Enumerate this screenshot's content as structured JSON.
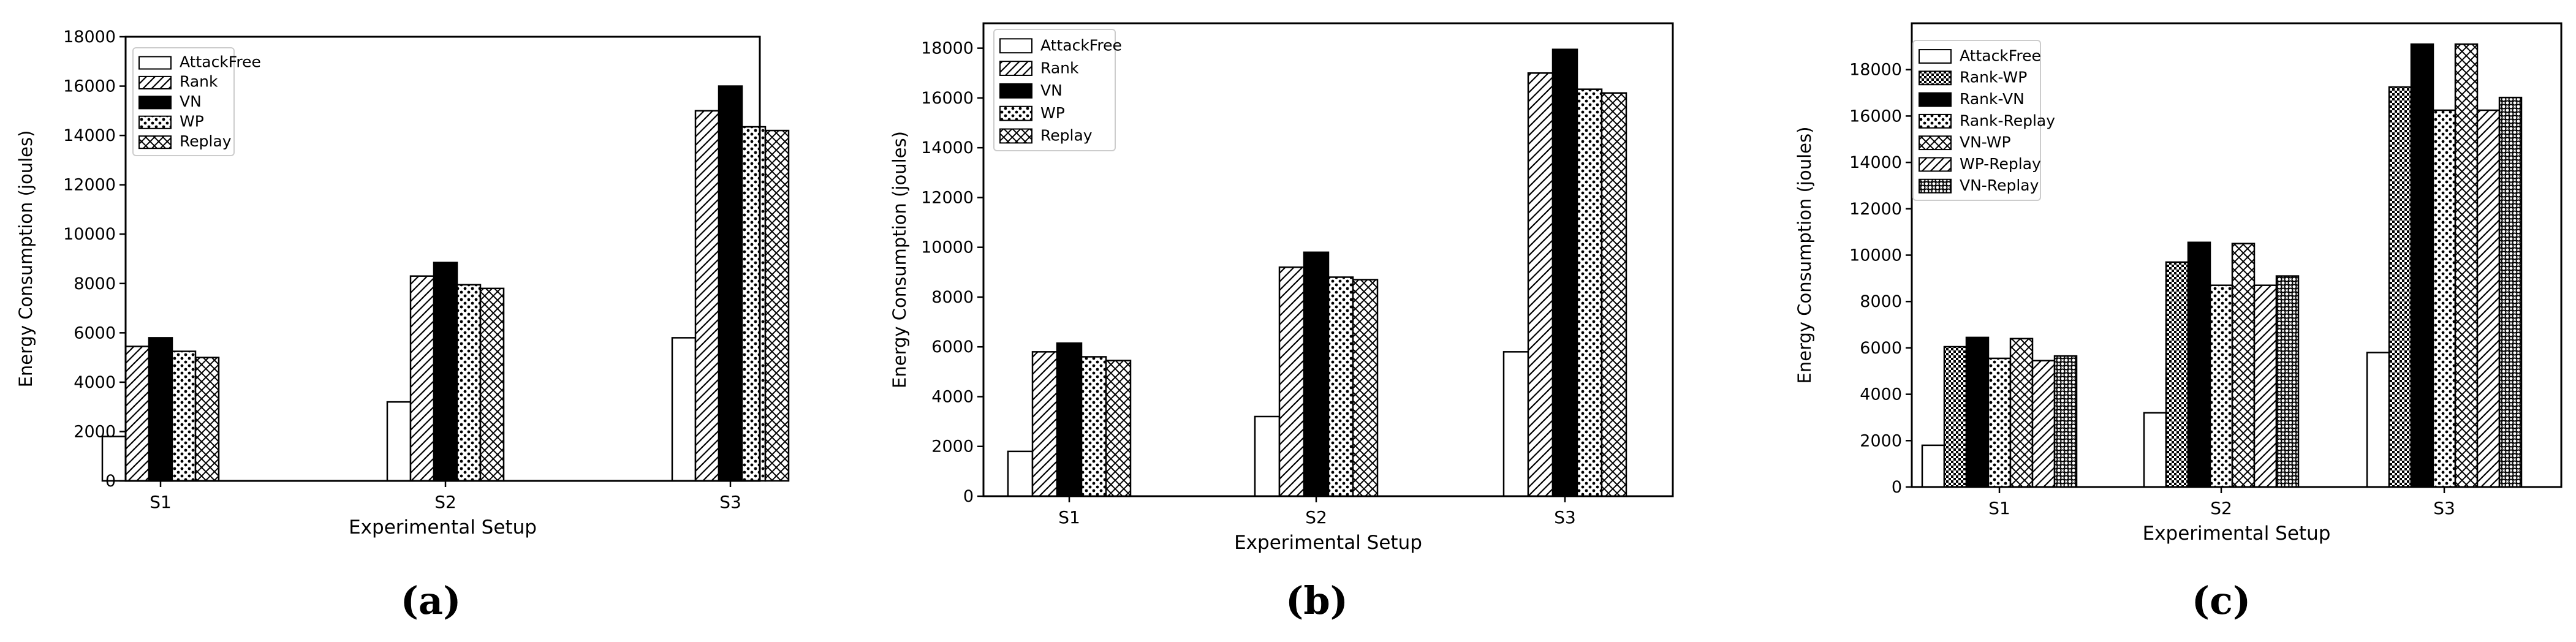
{
  "chart_data": [
    {
      "type": "bar",
      "panel_label": "(a)",
      "xlabel": "Experimental Setup",
      "ylabel": "Energy Consumption (joules)",
      "categories": [
        "S1",
        "S2",
        "S3"
      ],
      "ylim": [
        0,
        18000
      ],
      "yticks": [
        0,
        2000,
        4000,
        6000,
        8000,
        10000,
        12000,
        14000,
        16000,
        18000
      ],
      "legend_position": "upper-left",
      "series": [
        {
          "name": "AttackFree",
          "pattern": "empty",
          "values": [
            1800,
            3200,
            5800
          ]
        },
        {
          "name": "Rank",
          "pattern": "diagonal",
          "values": [
            5450,
            8300,
            15000
          ]
        },
        {
          "name": "VN",
          "pattern": "solid",
          "values": [
            5800,
            8850,
            16000
          ]
        },
        {
          "name": "WP",
          "pattern": "dots",
          "values": [
            5250,
            7950,
            14350
          ]
        },
        {
          "name": "Replay",
          "pattern": "crosshatch",
          "values": [
            5000,
            7800,
            14200
          ]
        }
      ]
    },
    {
      "type": "bar",
      "panel_label": "(b)",
      "xlabel": "Experimental Setup",
      "ylabel": "Energy Consumption (joules)",
      "categories": [
        "S1",
        "S2",
        "S3"
      ],
      "ylim": [
        0,
        19000
      ],
      "yticks": [
        0,
        2000,
        4000,
        6000,
        8000,
        10000,
        12000,
        14000,
        16000,
        18000
      ],
      "legend_position": "upper-left",
      "series": [
        {
          "name": "AttackFree",
          "pattern": "empty",
          "values": [
            1800,
            3200,
            5800
          ]
        },
        {
          "name": "Rank",
          "pattern": "diagonal",
          "values": [
            5800,
            9200,
            17000
          ]
        },
        {
          "name": "VN",
          "pattern": "solid",
          "values": [
            6150,
            9800,
            17950
          ]
        },
        {
          "name": "WP",
          "pattern": "dots",
          "values": [
            5600,
            8800,
            16350
          ]
        },
        {
          "name": "Replay",
          "pattern": "crosshatch",
          "values": [
            5450,
            8700,
            16200
          ]
        }
      ]
    },
    {
      "type": "bar",
      "panel_label": "(c)",
      "xlabel": "Experimental Setup",
      "ylabel": "Energy Consumption (joules)",
      "categories": [
        "S1",
        "S2",
        "S3"
      ],
      "ylim": [
        0,
        20000
      ],
      "yticks": [
        0,
        2000,
        4000,
        6000,
        8000,
        10000,
        12000,
        14000,
        16000,
        18000
      ],
      "legend_position": "upper-left",
      "series": [
        {
          "name": "AttackFree",
          "pattern": "empty",
          "values": [
            1800,
            3200,
            5800
          ]
        },
        {
          "name": "Rank-WP",
          "pattern": "grid",
          "values": [
            6050,
            9700,
            17250
          ]
        },
        {
          "name": "Rank-VN",
          "pattern": "solid",
          "values": [
            6450,
            10550,
            19100
          ]
        },
        {
          "name": "Rank-Replay",
          "pattern": "dots",
          "values": [
            5550,
            8700,
            16250
          ]
        },
        {
          "name": "VN-WP",
          "pattern": "crosshatch",
          "values": [
            6400,
            10500,
            19100
          ]
        },
        {
          "name": "WP-Replay",
          "pattern": "diagonal",
          "values": [
            5450,
            8700,
            16250
          ]
        },
        {
          "name": "VN-Replay",
          "pattern": "rings",
          "values": [
            5650,
            9100,
            16800
          ]
        }
      ]
    }
  ]
}
